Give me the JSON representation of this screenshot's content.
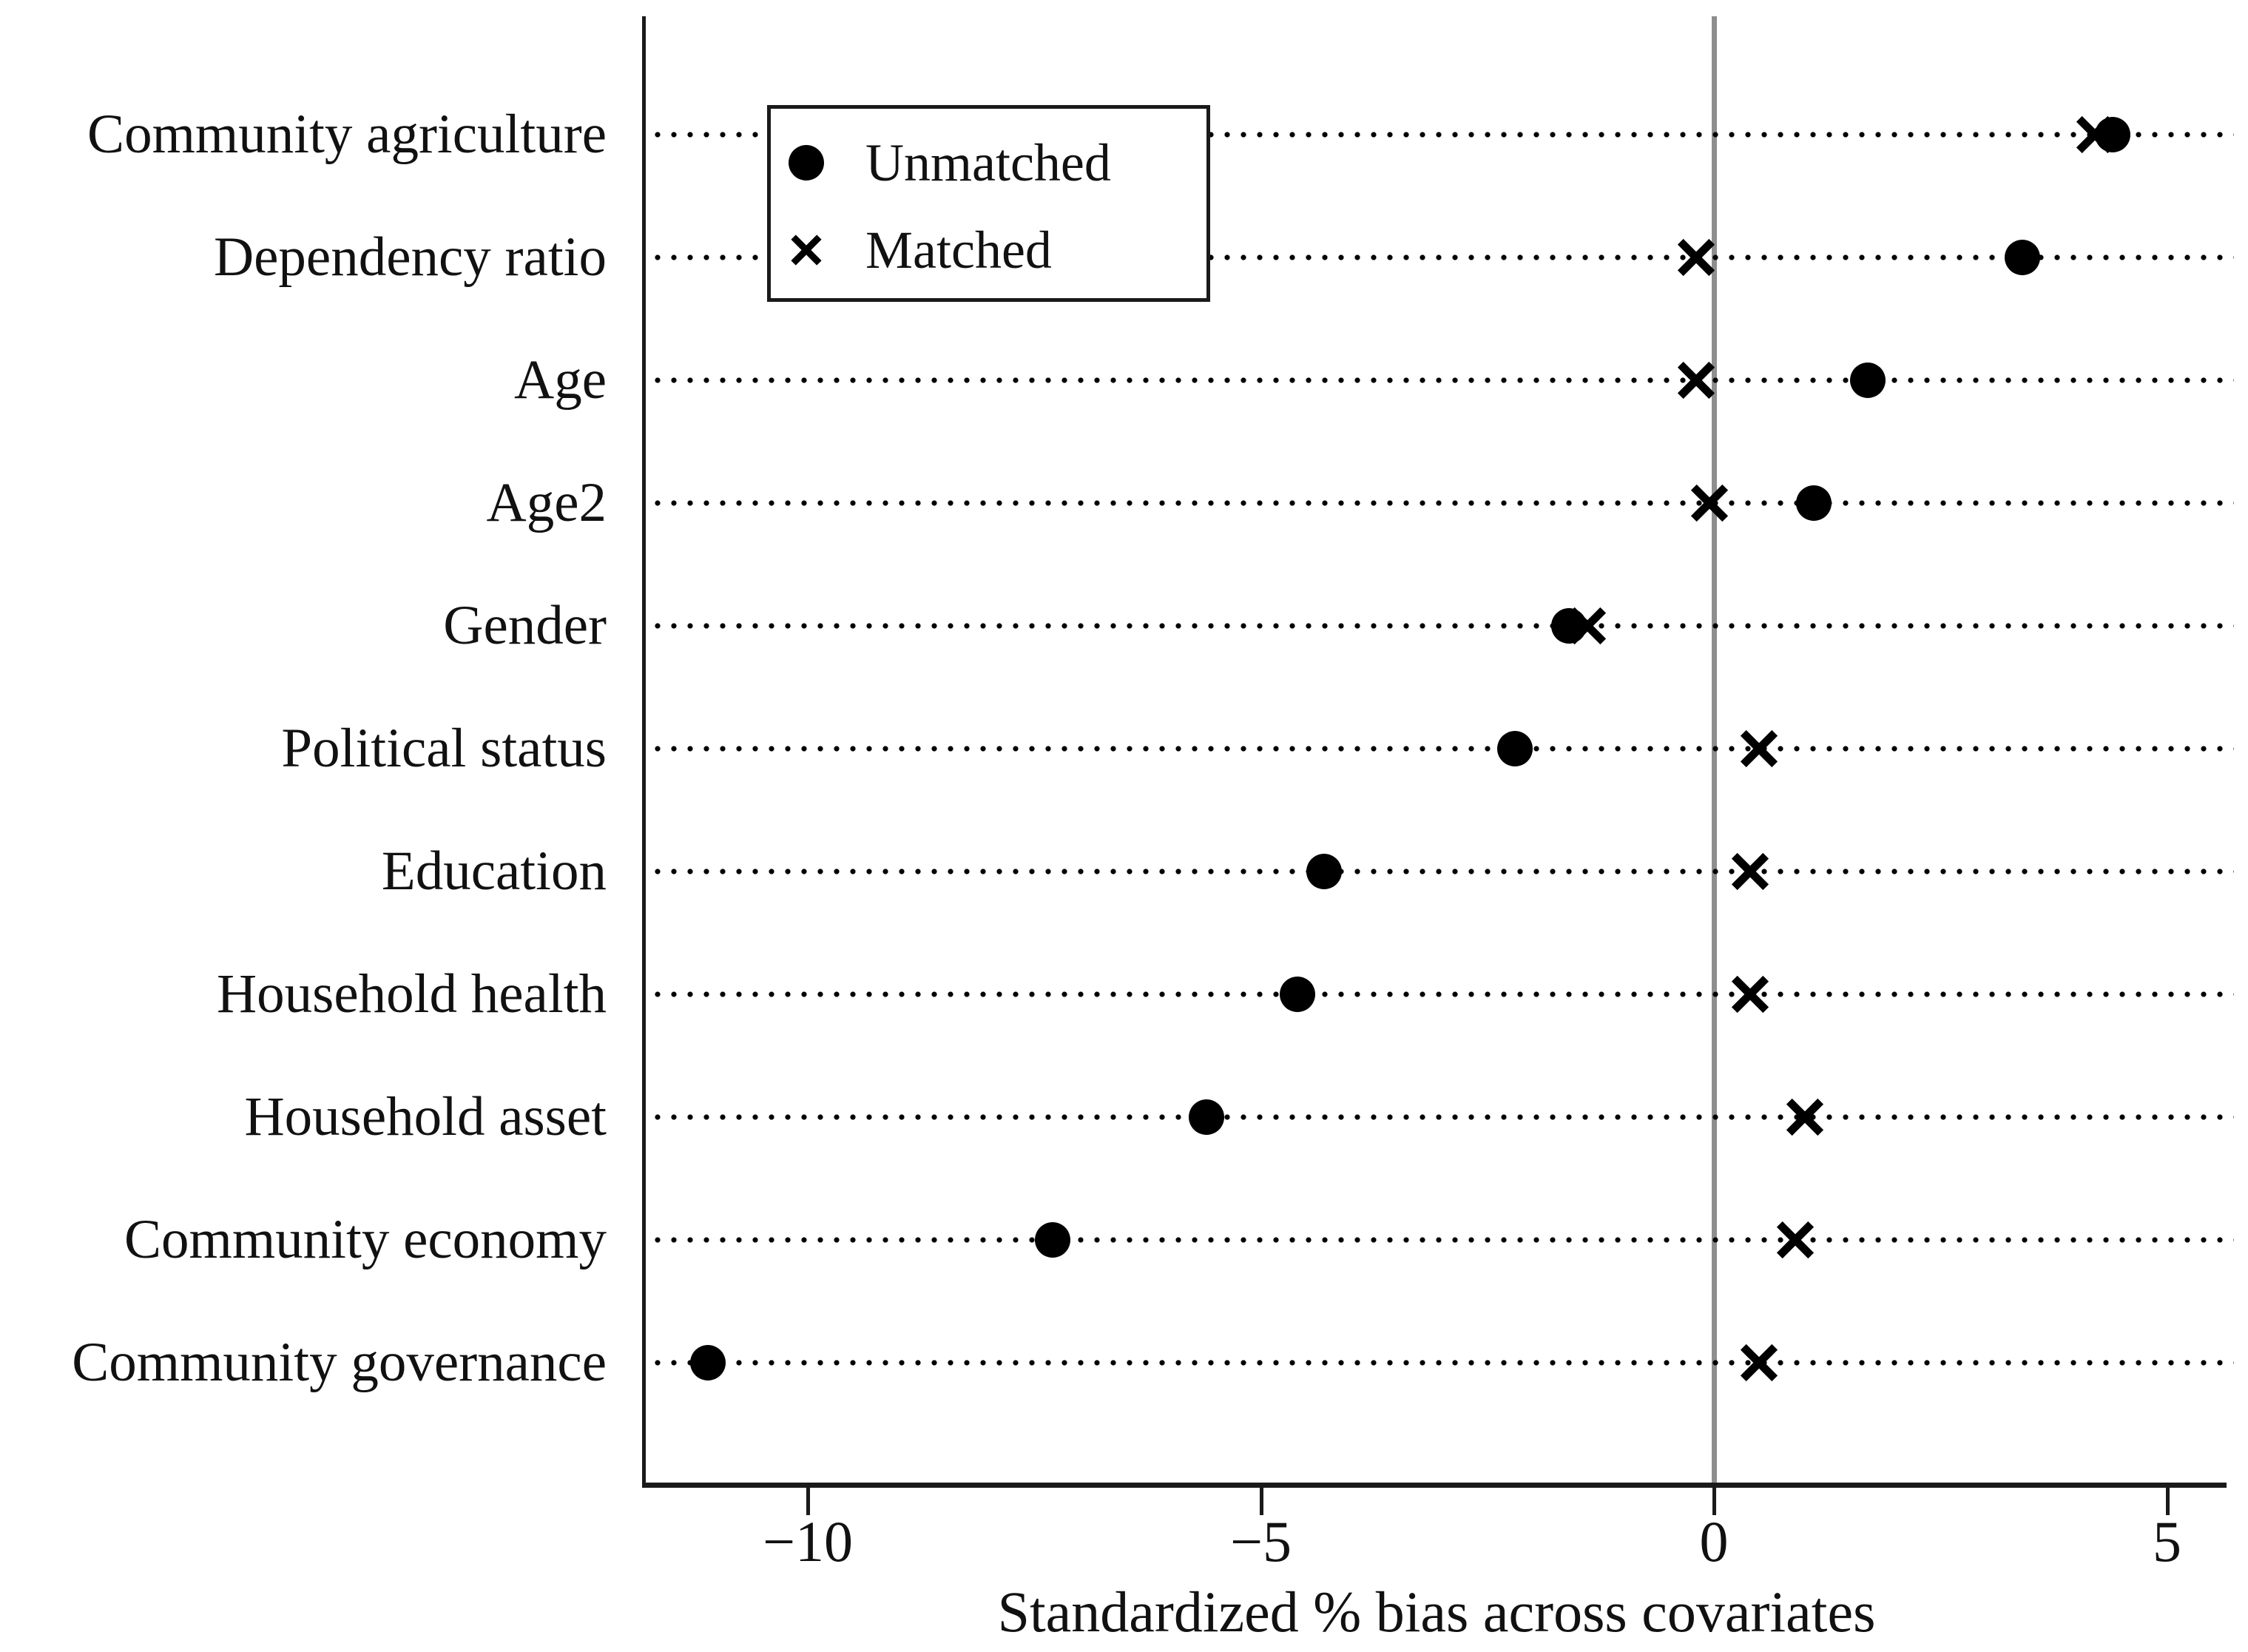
{
  "chart_data": {
    "type": "scatter",
    "xlabel": "Standardized % bias across covariates",
    "categories": [
      "Community agriculture",
      "Dependency ratio",
      "Age",
      "Age2",
      "Gender",
      "Political status",
      "Education",
      "Household health",
      "Household asset",
      "Community economy",
      "Community governance"
    ],
    "series": [
      {
        "name": "Unmatched",
        "marker": "circle",
        "values": [
          4.4,
          3.4,
          1.7,
          1.1,
          -1.6,
          -2.2,
          -4.3,
          -4.6,
          -5.6,
          -7.3,
          -11.1
        ]
      },
      {
        "name": "Matched",
        "marker": "x",
        "values": [
          4.2,
          -0.2,
          -0.2,
          -0.05,
          -1.4,
          0.5,
          0.4,
          0.4,
          1.0,
          0.9,
          0.5
        ]
      }
    ],
    "x_ticks": [
      {
        "value": -10,
        "label": "−10"
      },
      {
        "value": -5,
        "label": "−5"
      },
      {
        "value": 0,
        "label": "0"
      },
      {
        "value": 5,
        "label": "5"
      }
    ],
    "xlim": [
      -11.8,
      5.7
    ],
    "reference_line_x": 0,
    "grid": "horizontal-dotted",
    "legend_position": "top-left-inside"
  },
  "colors": {
    "marker": "#000000",
    "axis": "#1a1a1a",
    "reference_line": "#8e8e8e",
    "background": "#ffffff"
  }
}
